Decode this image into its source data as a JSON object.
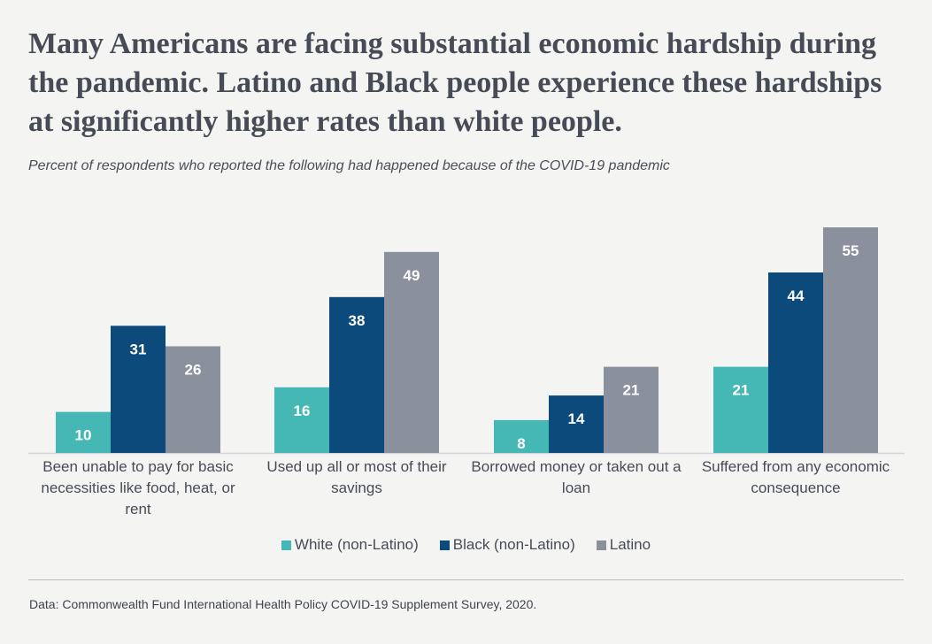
{
  "title": "Many Americans are facing substantial economic hardship during the pandemic. Latino and Black people experience these hardships at significantly higher rates than white people.",
  "subtitle": "Percent of respondents who reported the following had happened because of the COVID-19 pandemic",
  "source": "Data: Commonwealth Fund International Health Policy COVID-19 Supplement Survey, 2020.",
  "chart_data": {
    "type": "bar",
    "categories": [
      "Been unable to pay for basic necessities like food, heat, or rent",
      "Used up all or most of their savings",
      "Borrowed money or taken out a loan",
      "Suffered from any economic consequence"
    ],
    "series": [
      {
        "name": "White (non-Latino)",
        "color": "#45b8b5",
        "values": [
          10,
          16,
          8,
          21
        ]
      },
      {
        "name": "Black (non-Latino)",
        "color": "#0c4a7c",
        "values": [
          31,
          38,
          14,
          44
        ]
      },
      {
        "name": "Latino",
        "color": "#8a919c",
        "values": [
          26,
          49,
          21,
          55
        ]
      }
    ],
    "ylim": [
      0,
      55
    ],
    "grid": false,
    "legend": "bottom-center",
    "data_labels": true
  }
}
